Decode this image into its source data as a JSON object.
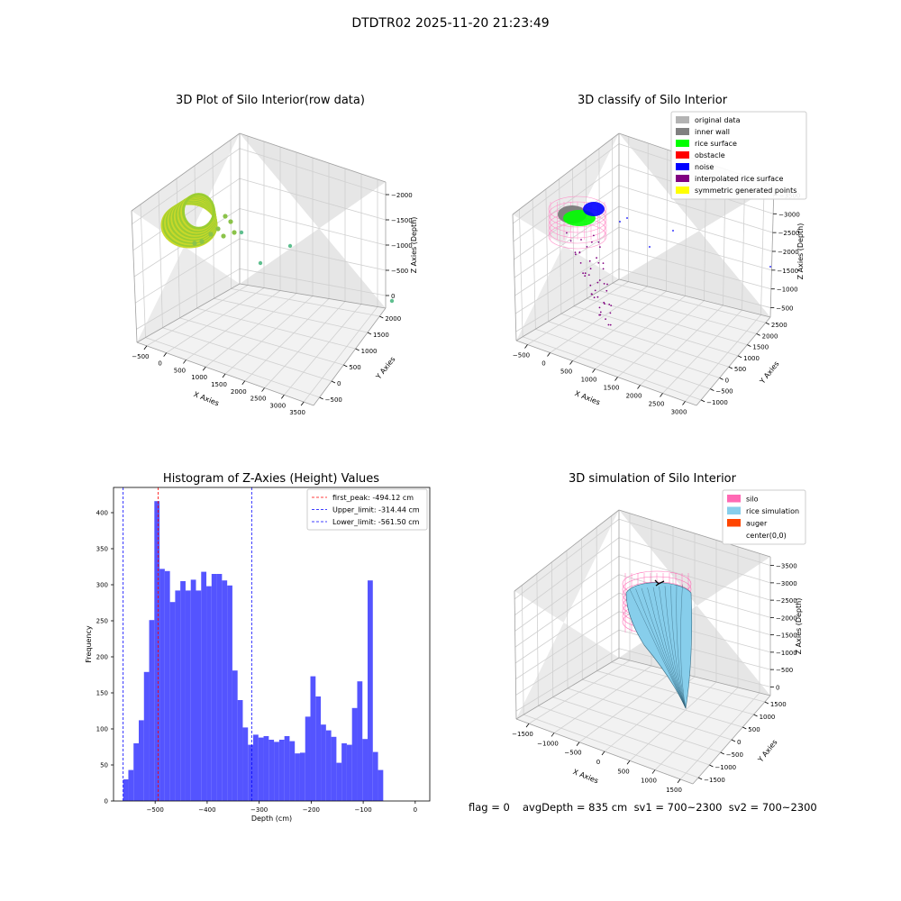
{
  "figure": {
    "title": "DTDTR02 2025-11-20 21:23:49"
  },
  "panels": {
    "raw": {
      "title": "3D Plot of Silo Interior(row data)",
      "xlabel": "X Axies",
      "ylabel": "Y Axies",
      "zlabel": "Z Axies (Depth)",
      "xticks": [
        "−500",
        "0",
        "500",
        "1000",
        "1500",
        "2000",
        "2500",
        "3000",
        "3500"
      ],
      "yticks": [
        "−500",
        "0",
        "500",
        "1000",
        "1500",
        "2000"
      ],
      "zticks": [
        "0",
        "−500",
        "−1000",
        "−1500",
        "−2000"
      ]
    },
    "classify": {
      "title": "3D classify of Silo Interior",
      "xlabel": "X Axies",
      "ylabel": "Y Axies",
      "zlabel": "Z Axies (Depth)",
      "xticks": [
        "−500",
        "0",
        "500",
        "1000",
        "1500",
        "2000",
        "2500",
        "3000"
      ],
      "yticks": [
        "−1000",
        "−500",
        "0",
        "500",
        "1000",
        "1500",
        "2000",
        "2500"
      ],
      "zticks": [
        "−500",
        "−1000",
        "−1500",
        "−2000",
        "−2500",
        "−3000",
        "−3500"
      ],
      "legend": [
        {
          "label": "original data",
          "color": "#b3b3b3"
        },
        {
          "label": "inner wall",
          "color": "#808080"
        },
        {
          "label": "rice surface",
          "color": "#00ff00"
        },
        {
          "label": "obstacle",
          "color": "#ff0000"
        },
        {
          "label": "noise",
          "color": "#0000ff"
        },
        {
          "label": "interpolated rice surface",
          "color": "#800080"
        },
        {
          "label": "symmetric generated points",
          "color": "#ffff00"
        }
      ]
    },
    "simulation": {
      "title": "3D simulation of Silo Interior",
      "xlabel": "X Axies",
      "ylabel": "Y Axies",
      "zlabel": "Z Axies (Depth)",
      "xticks": [
        "−1500",
        "−1000",
        "−500",
        "0",
        "500",
        "1000",
        "1500"
      ],
      "yticks": [
        "−1500",
        "−1000",
        "−500",
        "0",
        "500",
        "1000",
        "1500"
      ],
      "zticks": [
        "0",
        "−500",
        "−1000",
        "−1500",
        "−2000",
        "−2500",
        "−3000",
        "−3500"
      ],
      "legend": [
        {
          "label": "silo",
          "color": "#ff69b4"
        },
        {
          "label": "rice simulation",
          "color": "#87ceeb"
        },
        {
          "label": "auger",
          "color": "#ff4500"
        },
        {
          "label": "center(0,0)",
          "color": ""
        }
      ]
    }
  },
  "footer": {
    "flag": "flag = 0",
    "stats": "avgDepth = 835 cm  sv1 = 700~2300  sv2 = 700~2300"
  },
  "chart_data": {
    "type": "bar",
    "title": "Histogram of Z-Axies (Height) Values",
    "xlabel": "Depth (cm)",
    "ylabel": "Frequency",
    "xlim": [
      -580,
      28
    ],
    "ylim": [
      0,
      435
    ],
    "xticks": [
      -500,
      -400,
      -300,
      -200,
      -100,
      0
    ],
    "xtick_labels": [
      "−500",
      "−400",
      "−300",
      "−200",
      "−100",
      "0"
    ],
    "yticks": [
      0,
      50,
      100,
      150,
      200,
      250,
      300,
      350,
      400
    ],
    "bar_color": "#4b4bff",
    "bin_edges_start": -561.5,
    "bin_width": 10.0,
    "values": [
      30,
      43,
      80,
      112,
      179,
      251,
      416,
      322,
      319,
      276,
      292,
      305,
      292,
      307,
      292,
      318,
      298,
      315,
      315,
      306,
      299,
      181,
      140,
      102,
      78,
      92,
      88,
      90,
      85,
      82,
      85,
      90,
      83,
      66,
      67,
      117,
      173,
      145,
      106,
      98,
      89,
      53,
      80,
      78,
      129,
      166,
      86,
      306,
      68,
      43
    ],
    "vlines": [
      {
        "label": "first_peak: -494.12 cm",
        "x": -494.12,
        "color": "#ff0000"
      },
      {
        "label": "Upper_limit: -314.44 cm",
        "x": -314.44,
        "color": "#0000ff"
      },
      {
        "label": "Lower_limit: -561.50 cm",
        "x": -561.5,
        "color": "#0000ff"
      }
    ],
    "legend_position": "upper right"
  }
}
